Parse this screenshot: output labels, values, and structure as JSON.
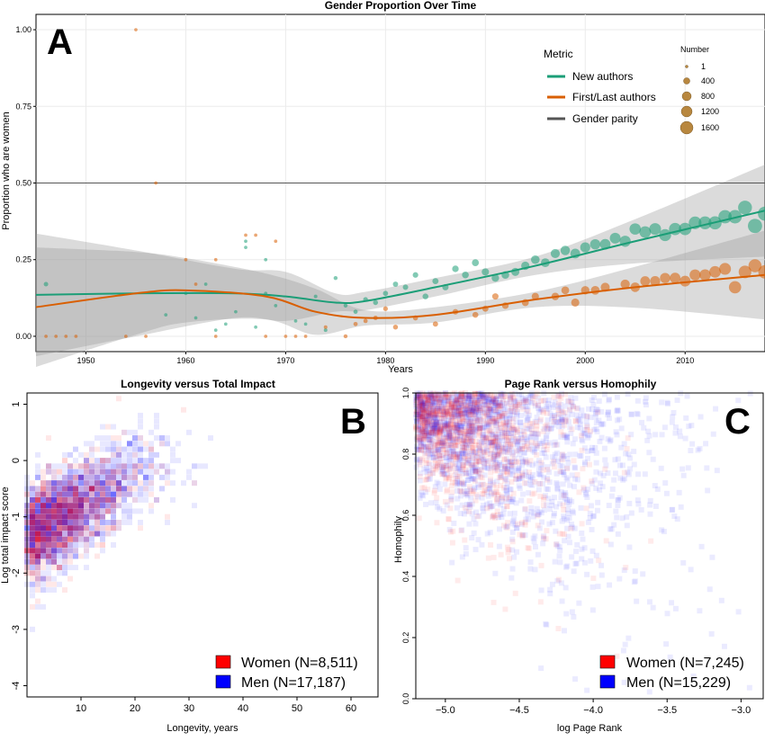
{
  "chart_data": [
    {
      "panel": "A",
      "type": "scatter",
      "title": "Gender Proportion Over Time",
      "xlabel": "Years",
      "ylabel": "Proportion who are women",
      "xlim": [
        1945,
        2018
      ],
      "ylim": [
        -0.05,
        1.05
      ],
      "xticks": [
        "1950",
        "1960",
        "1970",
        "1980",
        "1990",
        "2000",
        "2010"
      ],
      "yticks": [
        "0.00",
        "0.25",
        "0.50",
        "0.75",
        "1.00"
      ],
      "legend_title": "Metric",
      "size_legend_title": "Number",
      "size_legend": [
        "1",
        "400",
        "800",
        "1200",
        "1600"
      ],
      "series": [
        {
          "name": "New authors",
          "color": "#1b9e77",
          "points": [
            [
              1946,
              0.17
            ],
            [
              1958,
              0.07
            ],
            [
              1960,
              0.14
            ],
            [
              1961,
              0.06
            ],
            [
              1962,
              0.17
            ],
            [
              1963,
              0.02
            ],
            [
              1964,
              0.04
            ],
            [
              1965,
              0.08
            ],
            [
              1966,
              0.31
            ],
            [
              1966,
              0.29
            ],
            [
              1967,
              0.03
            ],
            [
              1968,
              0.14
            ],
            [
              1968,
              0.25
            ],
            [
              1969,
              0.1
            ],
            [
              1971,
              0.05
            ],
            [
              1972,
              0.04
            ],
            [
              1973,
              0.13
            ],
            [
              1974,
              0.02
            ],
            [
              1975,
              0.19
            ],
            [
              1976,
              0.1
            ],
            [
              1977,
              0.08
            ],
            [
              1978,
              0.12
            ],
            [
              1979,
              0.11
            ],
            [
              1980,
              0.14
            ],
            [
              1981,
              0.17
            ],
            [
              1982,
              0.16
            ],
            [
              1983,
              0.2
            ],
            [
              1984,
              0.13
            ],
            [
              1985,
              0.18
            ],
            [
              1986,
              0.16
            ],
            [
              1987,
              0.22
            ],
            [
              1988,
              0.2
            ],
            [
              1989,
              0.24
            ],
            [
              1990,
              0.21
            ],
            [
              1991,
              0.19
            ],
            [
              1992,
              0.2
            ],
            [
              1993,
              0.21
            ],
            [
              1994,
              0.23
            ],
            [
              1995,
              0.25
            ],
            [
              1996,
              0.24
            ],
            [
              1997,
              0.27
            ],
            [
              1998,
              0.28
            ],
            [
              1999,
              0.27
            ],
            [
              2000,
              0.29
            ],
            [
              2001,
              0.3
            ],
            [
              2002,
              0.3
            ],
            [
              2003,
              0.32
            ],
            [
              2004,
              0.31
            ],
            [
              2005,
              0.35
            ],
            [
              2006,
              0.34
            ],
            [
              2007,
              0.35
            ],
            [
              2008,
              0.33
            ],
            [
              2009,
              0.35
            ],
            [
              2010,
              0.35
            ],
            [
              2011,
              0.37
            ],
            [
              2012,
              0.37
            ],
            [
              2013,
              0.37
            ],
            [
              2014,
              0.39
            ],
            [
              2015,
              0.39
            ],
            [
              2016,
              0.42
            ],
            [
              2017,
              0.36
            ],
            [
              2018,
              0.4
            ]
          ],
          "sizes": [
            40,
            5,
            5,
            5,
            5,
            5,
            5,
            5,
            5,
            5,
            5,
            5,
            5,
            5,
            5,
            5,
            10,
            10,
            20,
            20,
            30,
            50,
            60,
            70,
            80,
            90,
            100,
            120,
            140,
            160,
            180,
            200,
            220,
            250,
            280,
            300,
            350,
            380,
            420,
            450,
            500,
            550,
            600,
            650,
            700,
            750,
            800,
            850,
            900,
            950,
            1000,
            1050,
            1100,
            1150,
            1200,
            1250,
            1300,
            1350,
            1400,
            1500,
            1600,
            1600
          ]
        },
        {
          "name": "First/Last authors",
          "color": "#d95f02",
          "points": [
            [
              1946,
              0.0
            ],
            [
              1947,
              0.0
            ],
            [
              1948,
              0.0
            ],
            [
              1949,
              0.0
            ],
            [
              1954,
              0.0
            ],
            [
              1955,
              1.0
            ],
            [
              1956,
              0.0
            ],
            [
              1957,
              0.5
            ],
            [
              1960,
              0.25
            ],
            [
              1961,
              0.17
            ],
            [
              1963,
              0.25
            ],
            [
              1963,
              0.0
            ],
            [
              1966,
              0.33
            ],
            [
              1967,
              0.33
            ],
            [
              1968,
              0.0
            ],
            [
              1969,
              0.31
            ],
            [
              1970,
              0.0
            ],
            [
              1971,
              0.0
            ],
            [
              1972,
              0.0
            ],
            [
              1974,
              0.03
            ],
            [
              1976,
              0.0
            ],
            [
              1977,
              0.04
            ],
            [
              1978,
              0.05
            ],
            [
              1979,
              0.06
            ],
            [
              1980,
              0.09
            ],
            [
              1981,
              0.03
            ],
            [
              1983,
              0.06
            ],
            [
              1985,
              0.04
            ],
            [
              1987,
              0.08
            ],
            [
              1989,
              0.07
            ],
            [
              1990,
              0.09
            ],
            [
              1991,
              0.13
            ],
            [
              1992,
              0.1
            ],
            [
              1994,
              0.11
            ],
            [
              1995,
              0.13
            ],
            [
              1997,
              0.13
            ],
            [
              1998,
              0.15
            ],
            [
              1999,
              0.11
            ],
            [
              2000,
              0.15
            ],
            [
              2001,
              0.15
            ],
            [
              2002,
              0.16
            ],
            [
              2004,
              0.17
            ],
            [
              2005,
              0.16
            ],
            [
              2006,
              0.18
            ],
            [
              2007,
              0.18
            ],
            [
              2008,
              0.19
            ],
            [
              2009,
              0.19
            ],
            [
              2010,
              0.18
            ],
            [
              2011,
              0.2
            ],
            [
              2012,
              0.2
            ],
            [
              2013,
              0.21
            ],
            [
              2014,
              0.22
            ],
            [
              2015,
              0.16
            ],
            [
              2016,
              0.21
            ],
            [
              2017,
              0.23
            ],
            [
              2018,
              0.21
            ]
          ],
          "sizes": [
            5,
            5,
            5,
            5,
            5,
            5,
            5,
            5,
            5,
            5,
            5,
            5,
            5,
            5,
            5,
            5,
            5,
            5,
            5,
            10,
            20,
            30,
            30,
            40,
            50,
            60,
            70,
            80,
            100,
            120,
            140,
            160,
            180,
            220,
            250,
            280,
            320,
            360,
            400,
            440,
            480,
            520,
            560,
            600,
            650,
            700,
            750,
            800,
            850,
            900,
            950,
            1000,
            1100,
            1200,
            1300,
            1400
          ]
        },
        {
          "name": "Gender parity",
          "color": "#555555",
          "value": 0.5
        }
      ],
      "fits": {
        "New authors": {
          "x": [
            1945,
            1955,
            1965,
            1970,
            1975,
            1978,
            1985,
            1995,
            2005,
            2018
          ],
          "y": [
            0.135,
            0.14,
            0.14,
            0.13,
            0.11,
            0.115,
            0.16,
            0.23,
            0.31,
            0.41
          ]
        },
        "First/Last authors": {
          "x": [
            1945,
            1955,
            1960,
            1968,
            1973,
            1978,
            1985,
            1995,
            2005,
            2018
          ],
          "y": [
            0.095,
            0.14,
            0.15,
            0.13,
            0.08,
            0.06,
            0.07,
            0.12,
            0.16,
            0.2
          ]
        }
      }
    },
    {
      "panel": "B",
      "type": "scatter",
      "title": "Longevity versus Total Impact",
      "xlabel": "Longevity, years",
      "ylabel": "Log total impact score",
      "xlim": [
        0,
        65
      ],
      "ylim": [
        -4.2,
        1.2
      ],
      "xticks": [
        "10",
        "20",
        "30",
        "40",
        "50",
        "60"
      ],
      "yticks": [
        "-4",
        "-3",
        "-2",
        "-1",
        "0",
        "1"
      ],
      "series": [
        {
          "name": "Women (N=8,511)",
          "color": "#ff0000"
        },
        {
          "name": "Men (N=17,187)",
          "color": "#0000ff"
        }
      ]
    },
    {
      "panel": "C",
      "type": "scatter",
      "title": "Page Rank versus Homophily",
      "xlabel": "log Page Rank",
      "ylabel": "Homophily",
      "xlim": [
        -5.2,
        -2.85
      ],
      "ylim": [
        0.0,
        1.0
      ],
      "xticks": [
        "−5.0",
        "−4.5",
        "−4.0",
        "−3.5",
        "−3.0"
      ],
      "yticks": [
        "0.0",
        "0.2",
        "0.4",
        "0.6",
        "0.8",
        "1.0"
      ],
      "series": [
        {
          "name": "Women (N=7,245)",
          "color": "#ff0000"
        },
        {
          "name": "Men (N=15,229)",
          "color": "#0000ff"
        }
      ]
    }
  ],
  "labels": {
    "a": "A",
    "b": "B",
    "c": "C"
  },
  "gridColor": "#ebebeb",
  "bandColor": "#999999"
}
